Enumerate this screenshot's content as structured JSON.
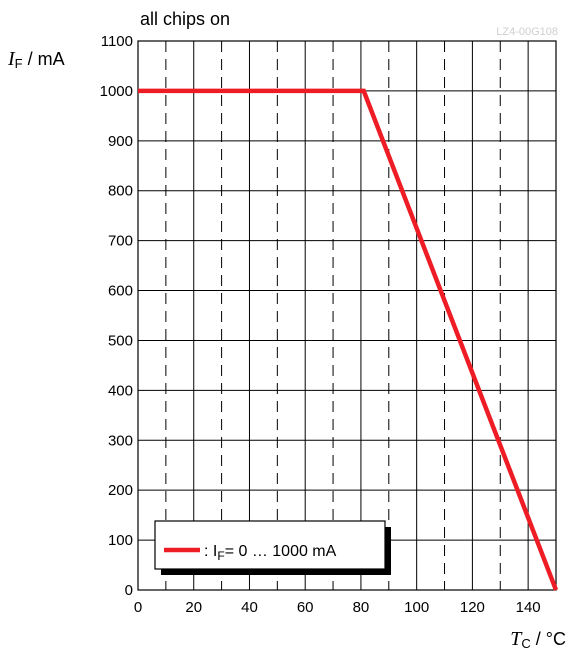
{
  "chart_data": {
    "type": "line",
    "title": "all chips on",
    "doc_id": "LZ4-00G108",
    "xlabel": {
      "var": "T",
      "sub": "C",
      "unit": " / °C"
    },
    "ylabel": {
      "var": "I",
      "sub": "F",
      "unit": " / mA"
    },
    "xlim": [
      0,
      150
    ],
    "ylim": [
      0,
      1100
    ],
    "x_ticks": [
      0,
      20,
      40,
      60,
      80,
      100,
      120,
      140
    ],
    "y_ticks": [
      0,
      100,
      200,
      300,
      400,
      500,
      600,
      700,
      800,
      900,
      1000,
      1100
    ],
    "x_grid_solid": [
      0,
      20,
      40,
      60,
      80,
      100,
      120,
      140,
      150
    ],
    "x_grid_dashed": [
      10,
      30,
      50,
      70,
      90,
      110,
      130
    ],
    "y_grid": [
      0,
      100,
      200,
      300,
      400,
      500,
      600,
      700,
      800,
      900,
      1000,
      1100
    ],
    "series": [
      {
        "name": "I_F = 0 … 1000 mA",
        "color": "#ee1c24",
        "x": [
          0,
          81,
          150
        ],
        "y": [
          1000,
          1000,
          0
        ]
      }
    ],
    "legend": {
      "position": "bottom-left",
      "prefix": ": I",
      "sub": "F",
      "suffix": "= 0 … 1000 mA"
    },
    "grid": true
  }
}
